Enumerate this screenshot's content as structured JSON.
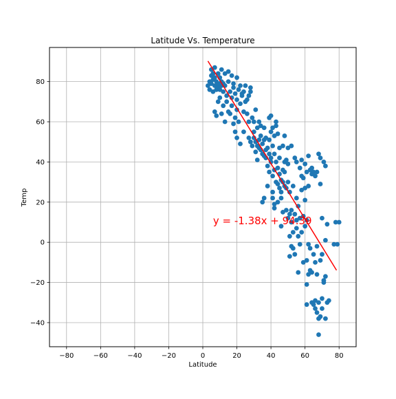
{
  "chart_data": {
    "type": "scatter",
    "title": "Latitude Vs. Temperature",
    "xlabel": "Latitude",
    "ylabel": "Temp",
    "xlim": [
      -90,
      90
    ],
    "ylim": [
      -52,
      97
    ],
    "xticks": [
      -80,
      -60,
      -40,
      -20,
      0,
      20,
      40,
      60,
      80
    ],
    "yticks": [
      -40,
      -20,
      0,
      20,
      40,
      60,
      80
    ],
    "xtick_labels": [
      "−80",
      "−60",
      "−40",
      "−20",
      "0",
      "20",
      "40",
      "60",
      "80"
    ],
    "ytick_labels": [
      "−40",
      "−20",
      "0",
      "20",
      "40",
      "60",
      "80"
    ],
    "grid": true,
    "colors": {
      "points": "#1f77b4",
      "regression": "#ff0000",
      "grid": "#b0b0b0"
    },
    "regression": {
      "slope": -1.38,
      "intercept": 94.39,
      "x_range": [
        3,
        78.5
      ],
      "equation_label": "y = -1.38x + 94.39",
      "label_anchor": [
        6,
        9
      ]
    },
    "points": [
      [
        3,
        78
      ],
      [
        4,
        76
      ],
      [
        4,
        80
      ],
      [
        5,
        83
      ],
      [
        5,
        86
      ],
      [
        5,
        79
      ],
      [
        6,
        75
      ],
      [
        6,
        81
      ],
      [
        6,
        84
      ],
      [
        7,
        78
      ],
      [
        7,
        87
      ],
      [
        7,
        82
      ],
      [
        7,
        65
      ],
      [
        8,
        76
      ],
      [
        8,
        80
      ],
      [
        8,
        63
      ],
      [
        9,
        77
      ],
      [
        9,
        84
      ],
      [
        9,
        79
      ],
      [
        9,
        70
      ],
      [
        10,
        82
      ],
      [
        10,
        76
      ],
      [
        10,
        72
      ],
      [
        11,
        80
      ],
      [
        11,
        78
      ],
      [
        11,
        86
      ],
      [
        11,
        64
      ],
      [
        12,
        68
      ],
      [
        12,
        75
      ],
      [
        12,
        79
      ],
      [
        13,
        84
      ],
      [
        13,
        78
      ],
      [
        13,
        60
      ],
      [
        14,
        73
      ],
      [
        14,
        70
      ],
      [
        15,
        85
      ],
      [
        15,
        80
      ],
      [
        15,
        65
      ],
      [
        16,
        75
      ],
      [
        16,
        64
      ],
      [
        17,
        83
      ],
      [
        17,
        72
      ],
      [
        17,
        68
      ],
      [
        18,
        79
      ],
      [
        18,
        77
      ],
      [
        18,
        59
      ],
      [
        19,
        74
      ],
      [
        19,
        62
      ],
      [
        19,
        55
      ],
      [
        20,
        82
      ],
      [
        20,
        71
      ],
      [
        20,
        66
      ],
      [
        20,
        52
      ],
      [
        21,
        76
      ],
      [
        21,
        60
      ],
      [
        22,
        78
      ],
      [
        22,
        69
      ],
      [
        22,
        49
      ],
      [
        23,
        74
      ],
      [
        23,
        73
      ],
      [
        24,
        75
      ],
      [
        24,
        65
      ],
      [
        24,
        55
      ],
      [
        25,
        78
      ],
      [
        25,
        70
      ],
      [
        26,
        64
      ],
      [
        26,
        71
      ],
      [
        27,
        73
      ],
      [
        27,
        60
      ],
      [
        27,
        52
      ],
      [
        28,
        75
      ],
      [
        28,
        77
      ],
      [
        28,
        50
      ],
      [
        29,
        62
      ],
      [
        29,
        48
      ],
      [
        30,
        55
      ],
      [
        30,
        52
      ],
      [
        30,
        60
      ],
      [
        31,
        45
      ],
      [
        31,
        50
      ],
      [
        31,
        66
      ],
      [
        32,
        57
      ],
      [
        32,
        48
      ],
      [
        32,
        41
      ],
      [
        33,
        47
      ],
      [
        33,
        51
      ],
      [
        33,
        60
      ],
      [
        34,
        46
      ],
      [
        34,
        53
      ],
      [
        34,
        58
      ],
      [
        35,
        44
      ],
      [
        35,
        49
      ],
      [
        35,
        20
      ],
      [
        36,
        51
      ],
      [
        36,
        43
      ],
      [
        36,
        57
      ],
      [
        36,
        22
      ],
      [
        37,
        42
      ],
      [
        37,
        46
      ],
      [
        37,
        52
      ],
      [
        38,
        38
      ],
      [
        38,
        47
      ],
      [
        38,
        28
      ],
      [
        39,
        51
      ],
      [
        39,
        44
      ],
      [
        39,
        35
      ],
      [
        39,
        62
      ],
      [
        40,
        40
      ],
      [
        40,
        55
      ],
      [
        40,
        63
      ],
      [
        40,
        42
      ],
      [
        41,
        33
      ],
      [
        41,
        48
      ],
      [
        41,
        57
      ],
      [
        41,
        25
      ],
      [
        41,
        22
      ],
      [
        42,
        53
      ],
      [
        42,
        44
      ],
      [
        42,
        36
      ],
      [
        42,
        17
      ],
      [
        42,
        19
      ],
      [
        43,
        40
      ],
      [
        43,
        30
      ],
      [
        43,
        58
      ],
      [
        43,
        60
      ],
      [
        44,
        37
      ],
      [
        44,
        29
      ],
      [
        44,
        20
      ],
      [
        44,
        54
      ],
      [
        45,
        27
      ],
      [
        45,
        34
      ],
      [
        45,
        47
      ],
      [
        45,
        42
      ],
      [
        46,
        31
      ],
      [
        46,
        25
      ],
      [
        46,
        22
      ],
      [
        46,
        8
      ],
      [
        47,
        48
      ],
      [
        47,
        30
      ],
      [
        47,
        36
      ],
      [
        47,
        15
      ],
      [
        48,
        35
      ],
      [
        48,
        28
      ],
      [
        48,
        40
      ],
      [
        48,
        53
      ],
      [
        49,
        27
      ],
      [
        49,
        41
      ],
      [
        49,
        16
      ],
      [
        50,
        39
      ],
      [
        50,
        30
      ],
      [
        50,
        47
      ],
      [
        50,
        12
      ],
      [
        51,
        14
      ],
      [
        51,
        25
      ],
      [
        51,
        3
      ],
      [
        51,
        -7
      ],
      [
        52,
        48
      ],
      [
        52,
        16
      ],
      [
        52,
        10
      ],
      [
        52,
        -2
      ],
      [
        53,
        28
      ],
      [
        53,
        -3
      ],
      [
        53,
        5
      ],
      [
        54,
        42
      ],
      [
        54,
        14
      ],
      [
        54,
        -6
      ],
      [
        55,
        40
      ],
      [
        55,
        22
      ],
      [
        55,
        11
      ],
      [
        55,
        7
      ],
      [
        56,
        -15
      ],
      [
        56,
        18
      ],
      [
        56,
        3
      ],
      [
        57,
        37
      ],
      [
        57,
        12
      ],
      [
        57,
        -1
      ],
      [
        58,
        33
      ],
      [
        58,
        41
      ],
      [
        58,
        26
      ],
      [
        58,
        5
      ],
      [
        59,
        32
      ],
      [
        59,
        -10
      ],
      [
        59,
        13
      ],
      [
        60,
        39
      ],
      [
        60,
        27
      ],
      [
        60,
        21
      ],
      [
        60,
        8
      ],
      [
        61,
        35
      ],
      [
        61,
        -9
      ],
      [
        61,
        -21
      ],
      [
        61,
        -31
      ],
      [
        61,
        11
      ],
      [
        62,
        43
      ],
      [
        62,
        28
      ],
      [
        62,
        -1
      ],
      [
        62,
        -16
      ],
      [
        63,
        36
      ],
      [
        63,
        -14
      ],
      [
        63,
        -3
      ],
      [
        64,
        37
      ],
      [
        64,
        34
      ],
      [
        64,
        -15
      ],
      [
        64,
        -30
      ],
      [
        65,
        35
      ],
      [
        65,
        -6
      ],
      [
        65,
        -31
      ],
      [
        66,
        33
      ],
      [
        66,
        -29
      ],
      [
        66,
        -33
      ],
      [
        66,
        -10
      ],
      [
        67,
        35
      ],
      [
        67,
        -35
      ],
      [
        67,
        -16
      ],
      [
        67,
        -2
      ],
      [
        68,
        44
      ],
      [
        68,
        -38
      ],
      [
        68,
        -46
      ],
      [
        68,
        -30
      ],
      [
        69,
        42
      ],
      [
        69,
        29
      ],
      [
        69,
        -37
      ],
      [
        69,
        -9
      ],
      [
        70,
        -33
      ],
      [
        70,
        -28
      ],
      [
        70,
        12
      ],
      [
        70,
        -6
      ],
      [
        71,
        40
      ],
      [
        71,
        -19
      ],
      [
        71,
        -20
      ],
      [
        72,
        38
      ],
      [
        72,
        -17
      ],
      [
        72,
        -38
      ],
      [
        72,
        1
      ],
      [
        73,
        -30
      ],
      [
        73,
        9
      ],
      [
        74,
        -29
      ],
      [
        77,
        -1
      ],
      [
        78,
        10
      ],
      [
        79,
        -1
      ],
      [
        80,
        10
      ]
    ]
  }
}
